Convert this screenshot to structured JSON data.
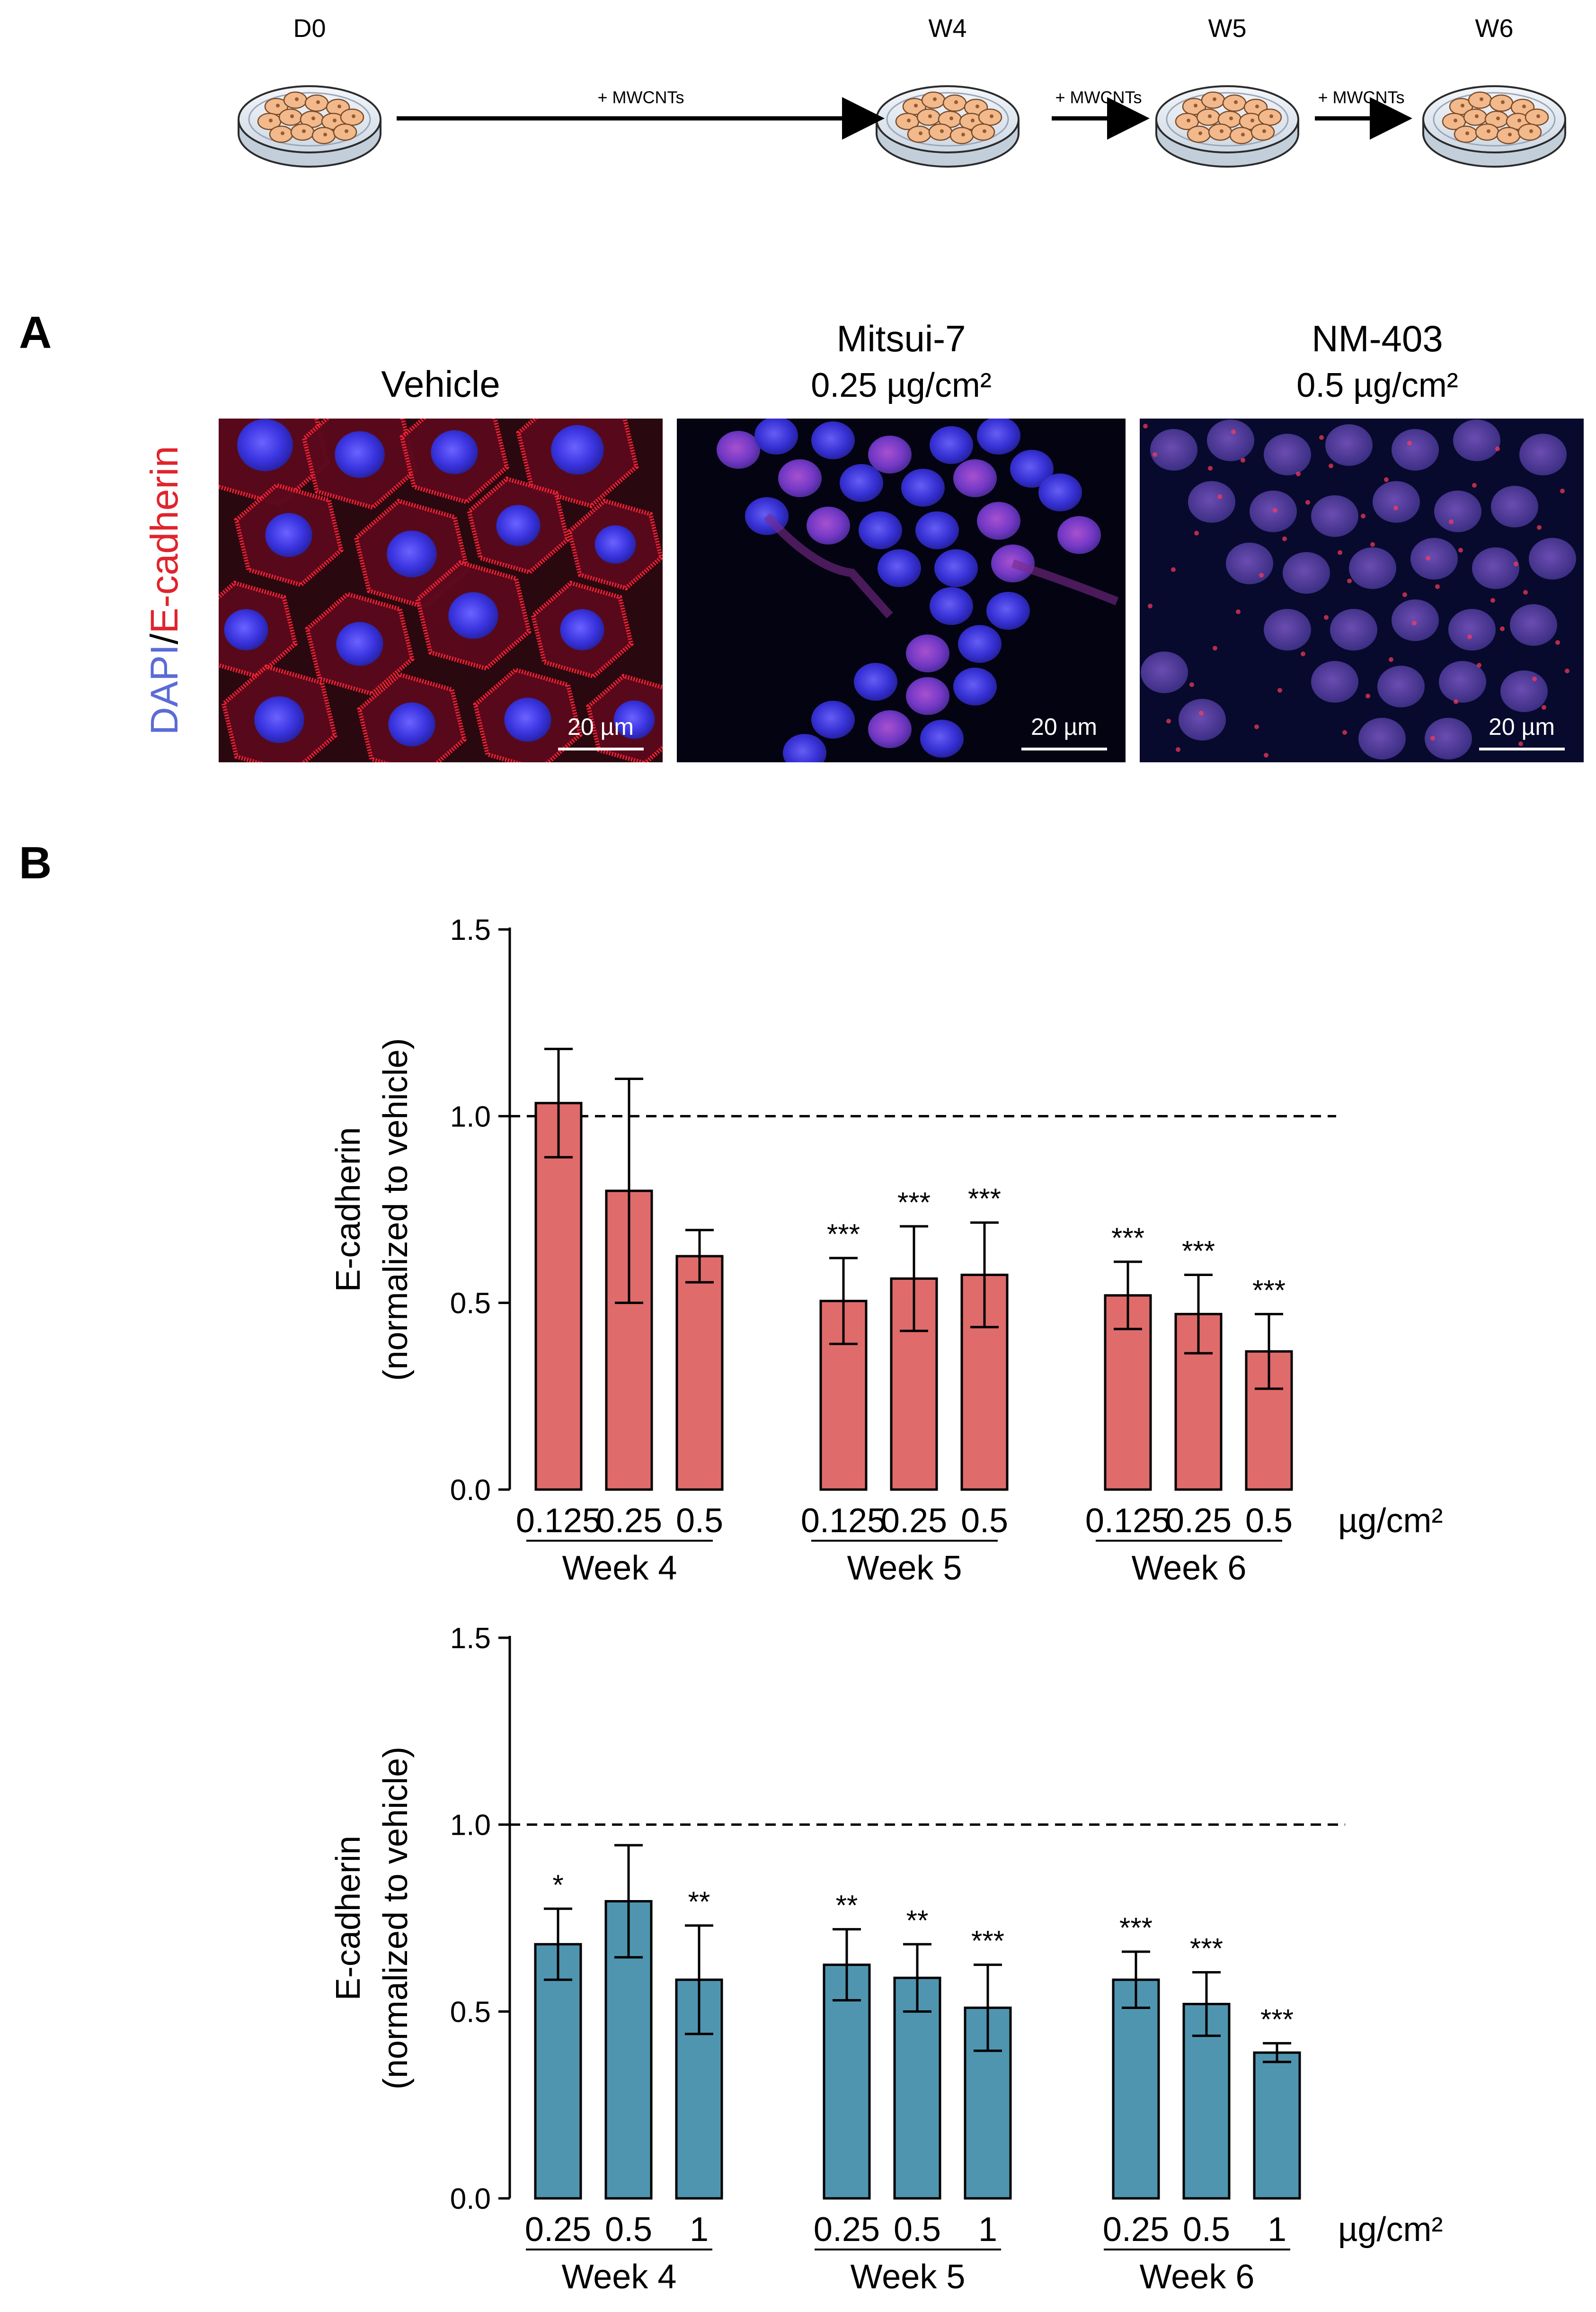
{
  "timeline": {
    "stages": [
      "D0",
      "W4",
      "W5",
      "W6"
    ],
    "arrow_label": "+ MWCNTs",
    "dish_color": "#e6edf5",
    "cell_color": "#f2b98c"
  },
  "panel_a": {
    "letter": "A",
    "stain_label": {
      "part1": "DAPI",
      "sep": "/",
      "part2": "E-cadherin"
    },
    "stain_colors": {
      "dapi": "#5b6bd6",
      "ecad": "#e0242c"
    },
    "images": [
      {
        "title_line1": "Vehicle",
        "title_line2": "",
        "scale_bar": "20 µm"
      },
      {
        "title_line1": "Mitsui-7",
        "title_line2": "0.25 µg/cm²",
        "scale_bar": "20 µm"
      },
      {
        "title_line1": "NM-403",
        "title_line2": "0.5 µg/cm²",
        "scale_bar": "20 µm"
      }
    ]
  },
  "panel_b": {
    "letter": "B"
  },
  "chart_data": [
    {
      "type": "bar",
      "ylabel_line1": "E-cadherin",
      "ylabel_line2": "(normalized to vehicle)",
      "ylim": [
        0,
        1.5
      ],
      "yticks": [
        "0.0",
        "0.5",
        "1.0",
        "1.5"
      ],
      "reference_line": 1.0,
      "bar_color": "#e06b6b",
      "unit": "µg/cm²",
      "groups": [
        {
          "label": "Week 4",
          "categories": [
            "0.125",
            "0.25",
            "0.5"
          ],
          "values": [
            1.035,
            0.8,
            0.625
          ],
          "errors": [
            0.145,
            0.3,
            0.07
          ],
          "sig": [
            "",
            "",
            ""
          ]
        },
        {
          "label": "Week 5",
          "categories": [
            "0.125",
            "0.25",
            "0.5"
          ],
          "values": [
            0.505,
            0.565,
            0.575
          ],
          "errors": [
            0.115,
            0.14,
            0.14
          ],
          "sig": [
            "***",
            "***",
            "***"
          ]
        },
        {
          "label": "Week 6",
          "categories": [
            "0.125",
            "0.25",
            "0.5"
          ],
          "values": [
            0.52,
            0.47,
            0.37
          ],
          "errors": [
            0.09,
            0.105,
            0.1
          ],
          "sig": [
            "***",
            "***",
            "***"
          ]
        }
      ]
    },
    {
      "type": "bar",
      "ylabel_line1": "E-cadherin",
      "ylabel_line2": "(normalized to vehicle)",
      "ylim": [
        0,
        1.5
      ],
      "yticks": [
        "0.0",
        "0.5",
        "1.0",
        "1.5"
      ],
      "reference_line": 1.0,
      "bar_color": "#4f95b0",
      "unit": "µg/cm²",
      "groups": [
        {
          "label": "Week 4",
          "categories": [
            "0.25",
            "0.5",
            "1"
          ],
          "values": [
            0.68,
            0.795,
            0.585
          ],
          "errors": [
            0.095,
            0.15,
            0.145
          ],
          "sig": [
            "*",
            "",
            "**"
          ]
        },
        {
          "label": "Week 5",
          "categories": [
            "0.25",
            "0.5",
            "1"
          ],
          "values": [
            0.625,
            0.59,
            0.51
          ],
          "errors": [
            0.095,
            0.09,
            0.115
          ],
          "sig": [
            "**",
            "**",
            "***"
          ]
        },
        {
          "label": "Week 6",
          "categories": [
            "0.25",
            "0.5",
            "1"
          ],
          "values": [
            0.585,
            0.52,
            0.39
          ],
          "errors": [
            0.075,
            0.085,
            0.025
          ],
          "sig": [
            "***",
            "***",
            "***"
          ]
        }
      ]
    }
  ]
}
